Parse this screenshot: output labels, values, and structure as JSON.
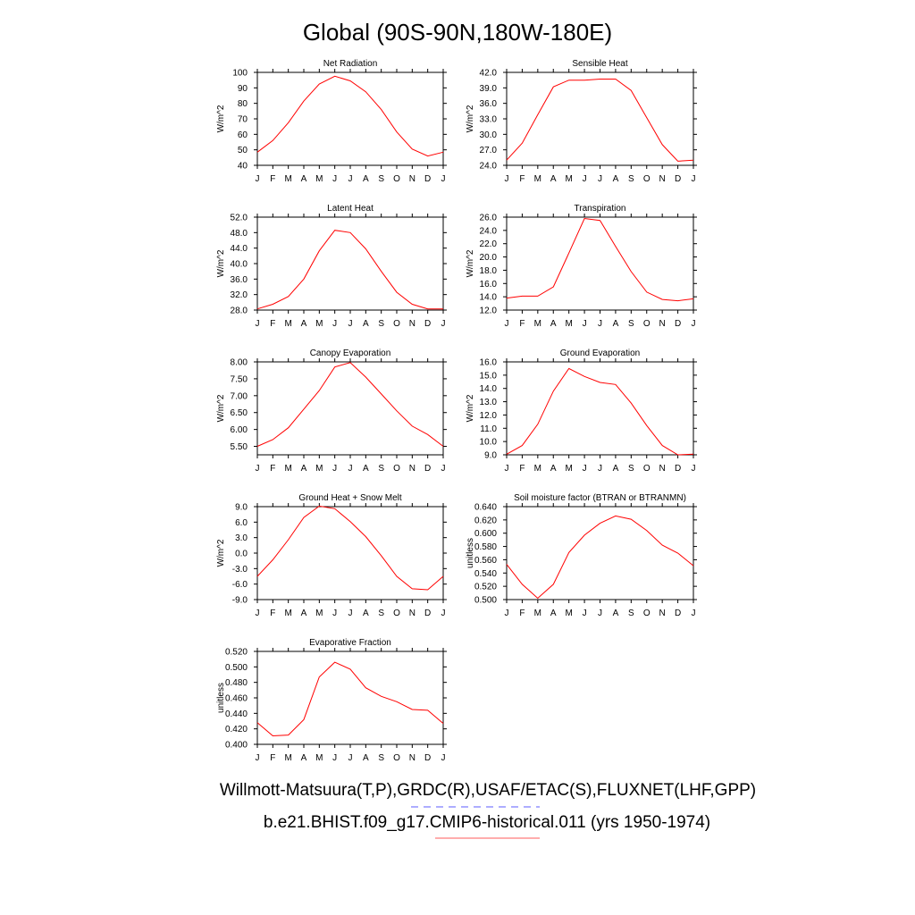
{
  "figure": {
    "title": "Global (90S-90N,180W-180E)"
  },
  "legend": {
    "obs_text": "Willmott-Matsuura(T,P),GRDC(R),USAF/ETAC(S),FLUXNET(LHF,GPP)",
    "obs_color": "#5b5bff",
    "model_text": "b.e21.BHIST.f09_g17.CMIP6-historical.011 (yrs 1950-1974)",
    "model_color": "#ff5b5b"
  },
  "colors": {
    "series": "#ff0000"
  },
  "chart_data": [
    {
      "type": "line",
      "title": "Net Radiation",
      "ylabel": "W/m^2",
      "categories": [
        "J",
        "F",
        "M",
        "A",
        "M",
        "J",
        "J",
        "A",
        "S",
        "O",
        "N",
        "D",
        "J"
      ],
      "ylim": [
        40,
        100
      ],
      "yticks": [
        "40",
        "50",
        "60",
        "70",
        "80",
        "90",
        "100"
      ],
      "series": [
        {
          "values": [
            48.5,
            56,
            67.5,
            81.5,
            92.5,
            97.5,
            94.5,
            87.5,
            76,
            61.5,
            50.5,
            46,
            48.5
          ]
        }
      ]
    },
    {
      "type": "line",
      "title": "Sensible Heat",
      "ylabel": "W/m^2",
      "categories": [
        "J",
        "F",
        "M",
        "A",
        "M",
        "J",
        "J",
        "A",
        "S",
        "O",
        "N",
        "D",
        "J"
      ],
      "ylim": [
        24,
        42
      ],
      "yticks": [
        "24.0",
        "27.0",
        "30.0",
        "33.0",
        "36.0",
        "39.0",
        "42.0"
      ],
      "series": [
        {
          "values": [
            25,
            28.3,
            33.8,
            39.2,
            40.5,
            40.5,
            40.7,
            40.7,
            38.5,
            33.2,
            28,
            24.8,
            25
          ]
        }
      ]
    },
    {
      "type": "line",
      "title": "Latent Heat",
      "ylabel": "W/m^2",
      "categories": [
        "J",
        "F",
        "M",
        "A",
        "M",
        "J",
        "J",
        "A",
        "S",
        "O",
        "N",
        "D",
        "J"
      ],
      "ylim": [
        28,
        52
      ],
      "yticks": [
        "28.0",
        "32.0",
        "36.0",
        "40.0",
        "44.0",
        "48.0",
        "52.0"
      ],
      "series": [
        {
          "values": [
            28.3,
            29.5,
            31.5,
            36,
            43.3,
            48.6,
            48,
            43.8,
            38,
            32.6,
            29.5,
            28.3,
            28.3
          ]
        }
      ]
    },
    {
      "type": "line",
      "title": "Transpiration",
      "ylabel": "W/m^2",
      "categories": [
        "J",
        "F",
        "M",
        "A",
        "M",
        "J",
        "J",
        "A",
        "S",
        "O",
        "N",
        "D",
        "J"
      ],
      "ylim": [
        12,
        26
      ],
      "yticks": [
        "12.0",
        "14.0",
        "16.0",
        "18.0",
        "20.0",
        "22.0",
        "24.0",
        "26.0"
      ],
      "series": [
        {
          "values": [
            13.8,
            14.1,
            14.1,
            15.5,
            20.6,
            25.8,
            25.5,
            21.6,
            17.8,
            14.7,
            13.6,
            13.4,
            13.7
          ]
        }
      ]
    },
    {
      "type": "line",
      "title": "Canopy Evaporation",
      "ylabel": "W/m^2",
      "categories": [
        "J",
        "F",
        "M",
        "A",
        "M",
        "J",
        "J",
        "A",
        "S",
        "O",
        "N",
        "D",
        "J"
      ],
      "ylim": [
        5.25,
        8.0
      ],
      "yticks": [
        "5.50",
        "6.00",
        "6.50",
        "7.00",
        "7.50",
        "8.00"
      ],
      "series": [
        {
          "values": [
            5.5,
            5.7,
            6.05,
            6.6,
            7.15,
            7.85,
            7.98,
            7.55,
            7.05,
            6.55,
            6.1,
            5.85,
            5.5
          ]
        }
      ]
    },
    {
      "type": "line",
      "title": "Ground Evaporation",
      "ylabel": "W/m^2",
      "categories": [
        "J",
        "F",
        "M",
        "A",
        "M",
        "J",
        "J",
        "A",
        "S",
        "O",
        "N",
        "D",
        "J"
      ],
      "ylim": [
        9,
        16
      ],
      "yticks": [
        "9.0",
        "10.0",
        "11.0",
        "12.0",
        "13.0",
        "14.0",
        "15.0",
        "16.0"
      ],
      "series": [
        {
          "values": [
            9.05,
            9.7,
            11.3,
            13.8,
            15.5,
            14.9,
            14.45,
            14.3,
            12.9,
            11.2,
            9.7,
            9.0,
            9.05
          ]
        }
      ]
    },
    {
      "type": "line",
      "title": "Ground Heat + Snow Melt",
      "ylabel": "W/m^2",
      "categories": [
        "J",
        "F",
        "M",
        "A",
        "M",
        "J",
        "J",
        "A",
        "S",
        "O",
        "N",
        "D",
        "J"
      ],
      "ylim": [
        -9,
        9
      ],
      "yticks": [
        "-9.0",
        "-6.0",
        "-3.0",
        "0.0",
        "3.0",
        "6.0",
        "9.0"
      ],
      "series": [
        {
          "values": [
            -4.5,
            -1.3,
            2.6,
            6.9,
            9.1,
            8.6,
            6.1,
            3.2,
            -0.5,
            -4.5,
            -6.9,
            -7.1,
            -4.5
          ]
        }
      ]
    },
    {
      "type": "line",
      "title": "Soil moisture factor (BTRAN or BTRANMN)",
      "ylabel": "unitless",
      "categories": [
        "J",
        "F",
        "M",
        "A",
        "M",
        "J",
        "J",
        "A",
        "S",
        "O",
        "N",
        "D",
        "J"
      ],
      "ylim": [
        0.5,
        0.64
      ],
      "yticks": [
        "0.500",
        "0.520",
        "0.540",
        "0.560",
        "0.580",
        "0.600",
        "0.620",
        "0.640"
      ],
      "series": [
        {
          "values": [
            0.553,
            0.523,
            0.502,
            0.523,
            0.571,
            0.597,
            0.615,
            0.626,
            0.621,
            0.604,
            0.582,
            0.57,
            0.551
          ]
        }
      ]
    },
    {
      "type": "line",
      "title": "Evaporative Fraction",
      "ylabel": "unitless",
      "categories": [
        "J",
        "F",
        "M",
        "A",
        "M",
        "J",
        "J",
        "A",
        "S",
        "O",
        "N",
        "D",
        "J"
      ],
      "ylim": [
        0.4,
        0.52
      ],
      "yticks": [
        "0.400",
        "0.420",
        "0.440",
        "0.460",
        "0.480",
        "0.500",
        "0.520"
      ],
      "series": [
        {
          "values": [
            0.428,
            0.411,
            0.412,
            0.432,
            0.487,
            0.506,
            0.497,
            0.473,
            0.462,
            0.455,
            0.445,
            0.444,
            0.427
          ]
        }
      ]
    }
  ]
}
